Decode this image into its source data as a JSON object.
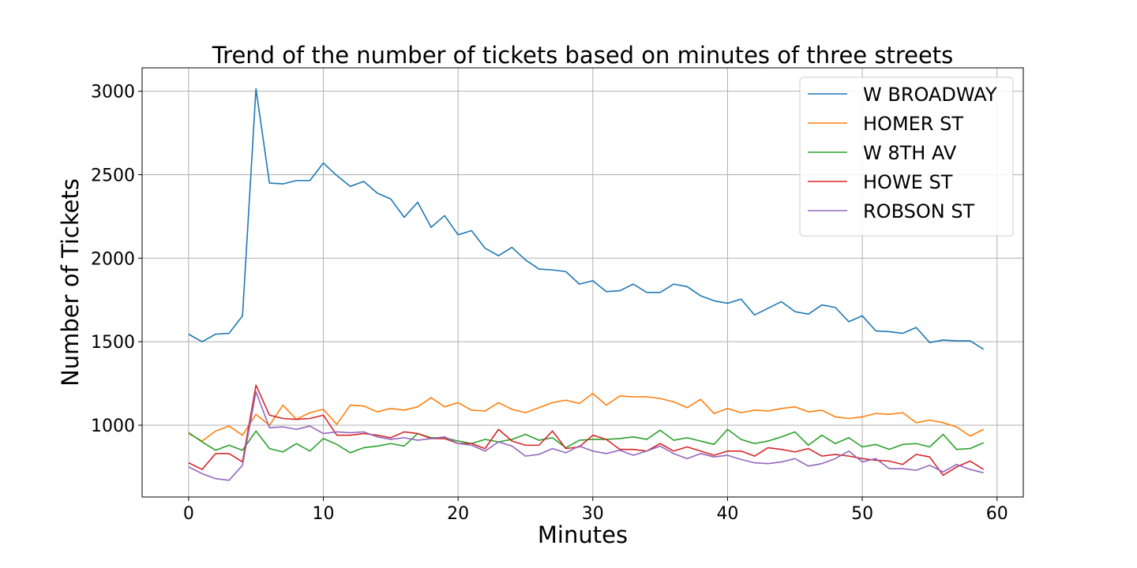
{
  "chart_data": {
    "type": "line",
    "title": "Trend of the number of tickets based on minutes of three streets",
    "xlabel": "Minutes",
    "ylabel": "Number of Tickets",
    "xlim": [
      -3.45,
      61.95
    ],
    "ylim": [
      570,
      3140
    ],
    "xticks": [
      0,
      10,
      20,
      30,
      40,
      50,
      60
    ],
    "yticks": [
      1000,
      1500,
      2000,
      2500,
      3000
    ],
    "grid": true,
    "legend_position": "top-right",
    "x": [
      0,
      1,
      2,
      3,
      4,
      5,
      6,
      7,
      8,
      9,
      10,
      11,
      12,
      13,
      14,
      15,
      16,
      17,
      18,
      19,
      20,
      21,
      22,
      23,
      24,
      25,
      26,
      27,
      28,
      29,
      30,
      31,
      32,
      33,
      34,
      35,
      36,
      37,
      38,
      39,
      40,
      41,
      42,
      43,
      44,
      45,
      46,
      47,
      48,
      49,
      50,
      51,
      52,
      53,
      54,
      55,
      56,
      57,
      58,
      59
    ],
    "series": [
      {
        "name": "W BROADWAY",
        "color": "#1f77b4",
        "values": [
          1545,
          1500,
          1545,
          1550,
          1655,
          3015,
          2450,
          2445,
          2465,
          2465,
          2570,
          2495,
          2430,
          2460,
          2390,
          2355,
          2245,
          2335,
          2185,
          2255,
          2140,
          2165,
          2060,
          2015,
          2065,
          1990,
          1935,
          1930,
          1920,
          1845,
          1865,
          1800,
          1805,
          1845,
          1795,
          1795,
          1845,
          1830,
          1775,
          1745,
          1730,
          1755,
          1660,
          1700,
          1740,
          1680,
          1665,
          1720,
          1705,
          1620,
          1655,
          1565,
          1560,
          1550,
          1585,
          1495,
          1510,
          1505,
          1505,
          1455
        ]
      },
      {
        "name": "HOMER ST",
        "color": "#ff7f0e",
        "values": [
          950,
          905,
          965,
          995,
          940,
          1065,
          1000,
          1120,
          1035,
          1075,
          1095,
          1005,
          1120,
          1115,
          1080,
          1100,
          1090,
          1110,
          1165,
          1110,
          1135,
          1090,
          1085,
          1135,
          1095,
          1075,
          1105,
          1135,
          1150,
          1130,
          1190,
          1120,
          1175,
          1170,
          1170,
          1160,
          1140,
          1105,
          1155,
          1070,
          1100,
          1075,
          1090,
          1085,
          1100,
          1110,
          1080,
          1090,
          1050,
          1040,
          1050,
          1070,
          1065,
          1075,
          1015,
          1030,
          1015,
          990,
          935,
          975
        ]
      },
      {
        "name": "W 8TH AV",
        "color": "#2ca02c",
        "values": [
          955,
          900,
          850,
          880,
          850,
          965,
          860,
          840,
          890,
          845,
          920,
          885,
          835,
          865,
          875,
          890,
          875,
          950,
          925,
          925,
          905,
          890,
          915,
          900,
          915,
          945,
          910,
          925,
          865,
          910,
          915,
          915,
          920,
          930,
          915,
          970,
          910,
          925,
          905,
          885,
          975,
          915,
          890,
          905,
          930,
          960,
          880,
          940,
          890,
          925,
          870,
          885,
          855,
          885,
          890,
          870,
          945,
          855,
          860,
          895
        ]
      },
      {
        "name": "HOWE ST",
        "color": "#d62728",
        "values": [
          775,
          735,
          830,
          830,
          780,
          1240,
          1060,
          1040,
          1035,
          1040,
          1060,
          940,
          940,
          950,
          940,
          925,
          960,
          950,
          920,
          920,
          890,
          890,
          860,
          975,
          905,
          880,
          880,
          965,
          860,
          870,
          940,
          915,
          855,
          855,
          845,
          890,
          845,
          870,
          845,
          820,
          845,
          845,
          815,
          865,
          855,
          840,
          860,
          815,
          825,
          815,
          800,
          790,
          785,
          765,
          825,
          810,
          700,
          750,
          785,
          735
        ]
      },
      {
        "name": "ROBSON ST",
        "color": "#9467bd",
        "values": [
          750,
          710,
          680,
          670,
          760,
          1200,
          985,
          990,
          975,
          995,
          950,
          960,
          955,
          960,
          930,
          915,
          925,
          910,
          920,
          930,
          890,
          880,
          845,
          900,
          875,
          815,
          825,
          860,
          835,
          875,
          845,
          830,
          850,
          820,
          845,
          875,
          830,
          800,
          830,
          810,
          820,
          795,
          775,
          770,
          780,
          800,
          755,
          770,
          800,
          845,
          780,
          800,
          740,
          740,
          730,
          760,
          720,
          765,
          735,
          715
        ]
      }
    ]
  }
}
